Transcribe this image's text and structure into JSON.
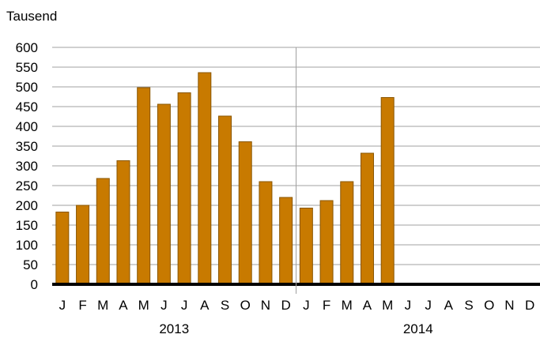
{
  "chart_data": {
    "type": "bar",
    "unit_label": "Tausend",
    "categories": [
      "J",
      "F",
      "M",
      "A",
      "M",
      "J",
      "J",
      "A",
      "S",
      "O",
      "N",
      "D",
      "J",
      "F",
      "M",
      "A",
      "M",
      "J",
      "J",
      "A",
      "S",
      "O",
      "N",
      "D"
    ],
    "years": [
      "2013",
      "2014"
    ],
    "values": [
      183,
      200,
      268,
      313,
      498,
      456,
      485,
      536,
      426,
      361,
      260,
      220,
      193,
      212,
      260,
      332,
      473,
      null,
      null,
      null,
      null,
      null,
      null,
      null
    ],
    "ylim": [
      0,
      600
    ],
    "yticks": [
      0,
      50,
      100,
      150,
      200,
      250,
      300,
      350,
      400,
      450,
      500,
      550,
      600
    ],
    "grid": true,
    "colors": {
      "bar": "#c87a00",
      "bar_edge": "#8a5600",
      "grid": "#a0a0a0",
      "axis": "#000000"
    }
  }
}
